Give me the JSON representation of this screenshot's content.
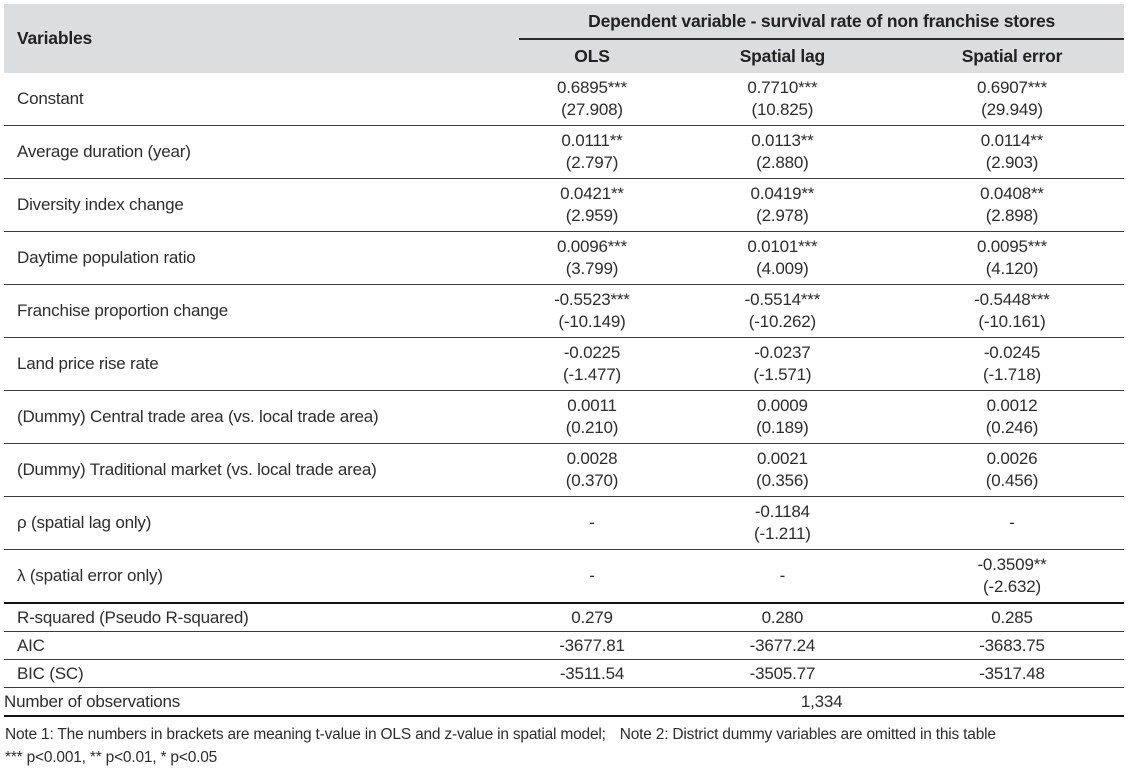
{
  "table": {
    "variables_header": "Variables",
    "dependent_header": "Dependent variable - survival rate of non franchise stores",
    "columns": [
      "OLS",
      "Spatial lag",
      "Spatial error"
    ],
    "rows": [
      {
        "label": "Constant",
        "cells": [
          {
            "v": "0.6895***",
            "t": "(27.908)"
          },
          {
            "v": "0.7710***",
            "t": "(10.825)"
          },
          {
            "v": "0.6907***",
            "t": "(29.949)"
          }
        ]
      },
      {
        "label": "Average duration (year)",
        "cells": [
          {
            "v": "0.0111**",
            "t": "(2.797)"
          },
          {
            "v": "0.0113**",
            "t": "(2.880)"
          },
          {
            "v": "0.0114**",
            "t": "(2.903)"
          }
        ]
      },
      {
        "label": "Diversity index change",
        "cells": [
          {
            "v": "0.0421**",
            "t": "(2.959)"
          },
          {
            "v": "0.0419**",
            "t": "(2.978)"
          },
          {
            "v": "0.0408**",
            "t": "(2.898)"
          }
        ]
      },
      {
        "label": "Daytime population ratio",
        "cells": [
          {
            "v": "0.0096***",
            "t": "(3.799)"
          },
          {
            "v": "0.0101***",
            "t": "(4.009)"
          },
          {
            "v": "0.0095***",
            "t": "(4.120)"
          }
        ]
      },
      {
        "label": "Franchise proportion change",
        "cells": [
          {
            "v": "-0.5523***",
            "t": "(-10.149)"
          },
          {
            "v": "-0.5514***",
            "t": "(-10.262)"
          },
          {
            "v": "-0.5448***",
            "t": "(-10.161)"
          }
        ]
      },
      {
        "label": "Land price rise rate",
        "cells": [
          {
            "v": "-0.0225",
            "t": "(-1.477)"
          },
          {
            "v": "-0.0237",
            "t": "(-1.571)"
          },
          {
            "v": "-0.0245",
            "t": "(-1.718)"
          }
        ]
      },
      {
        "label": "(Dummy) Central trade area (vs. local trade area)",
        "cells": [
          {
            "v": "0.0011",
            "t": "(0.210)"
          },
          {
            "v": "0.0009",
            "t": "(0.189)"
          },
          {
            "v": "0.0012",
            "t": "(0.246)"
          }
        ]
      },
      {
        "label": "(Dummy) Traditional market (vs. local trade area)",
        "cells": [
          {
            "v": "0.0028",
            "t": "(0.370)"
          },
          {
            "v": "0.0021",
            "t": "(0.356)"
          },
          {
            "v": "0.0026",
            "t": "(0.456)"
          }
        ]
      },
      {
        "label": "ρ (spatial lag only)",
        "cells": [
          {
            "v": "-",
            "t": ""
          },
          {
            "v": "-0.1184",
            "t": "(-1.211)"
          },
          {
            "v": "-",
            "t": ""
          }
        ]
      },
      {
        "label": "λ (spatial error only)",
        "cells": [
          {
            "v": "-",
            "t": ""
          },
          {
            "v": "-",
            "t": ""
          },
          {
            "v": "-0.3509**",
            "t": "(-2.632)"
          }
        ]
      }
    ],
    "summary_rows": [
      {
        "label": "R-squared (Pseudo R-squared)",
        "values": [
          "0.279",
          "0.280",
          "0.285"
        ]
      },
      {
        "label": "AIC",
        "values": [
          "-3677.81",
          "-3677.24",
          "-3683.75"
        ]
      },
      {
        "label": "BIC (SC)",
        "values": [
          "-3511.54",
          "-3505.77",
          "-3517.48"
        ]
      }
    ],
    "observations": {
      "label": "Number of observations",
      "value": "1,334"
    }
  },
  "notes": {
    "note1": "Note 1: The numbers in brackets are meaning t-value in OLS and z-value in spatial model;",
    "note2": "Note 2: District dummy variables are omitted in this table",
    "significance": "*** p<0.001, ** p<0.01, * p<0.05"
  },
  "colors": {
    "header_bg": "#dcddde",
    "text": "#2d2d2d",
    "thin_line": "#3b3b3b",
    "thick_line": "#131313"
  }
}
